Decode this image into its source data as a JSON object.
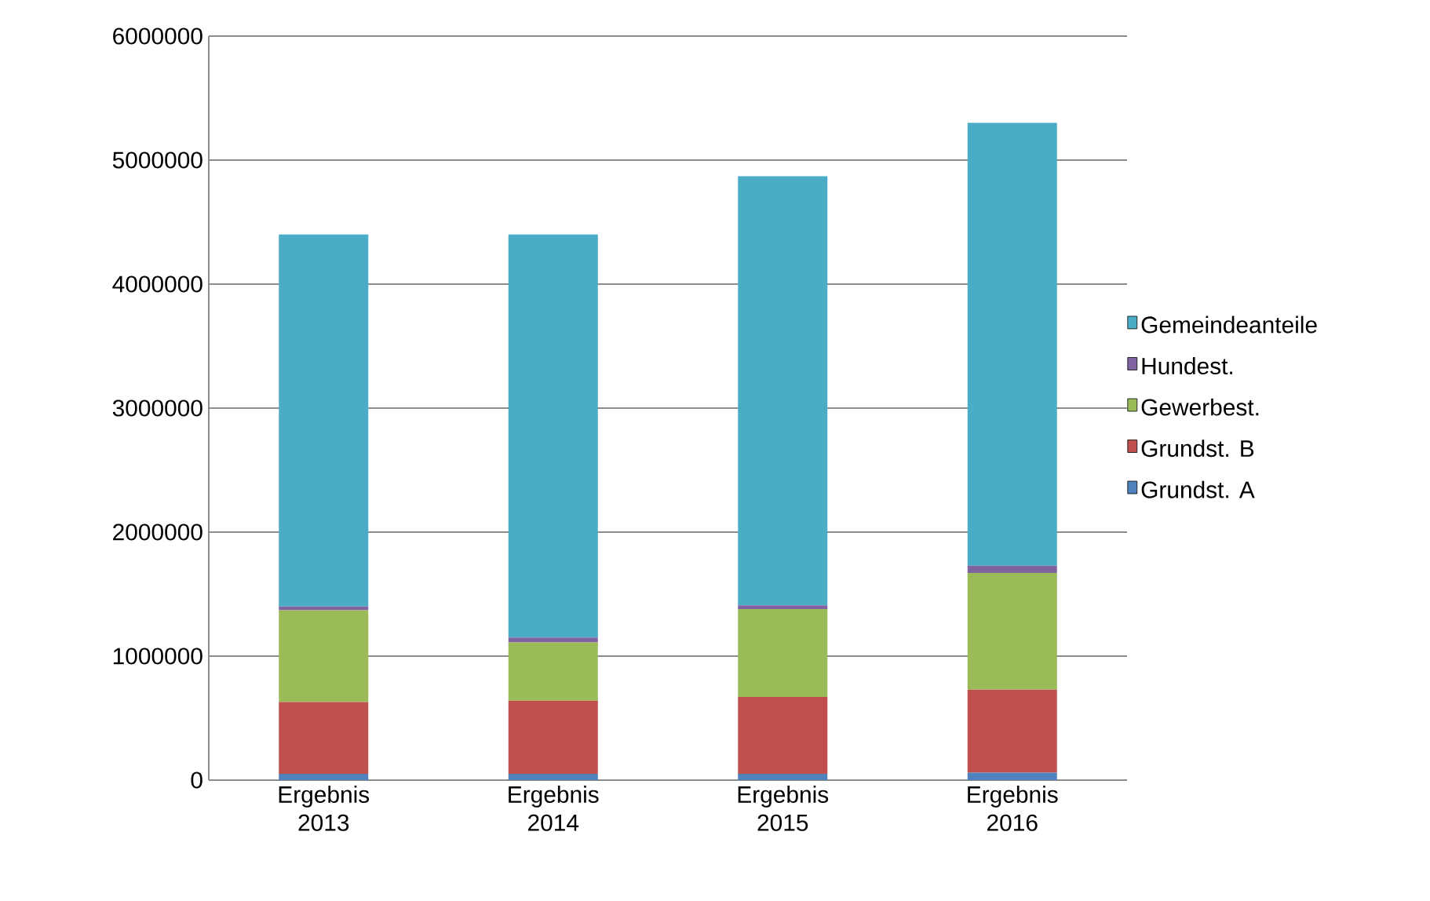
{
  "chart_data": {
    "type": "bar",
    "stacked": true,
    "categories": [
      "Ergebnis 2013",
      "Ergebnis 2014",
      "Ergebnis 2015",
      "Ergebnis 2016"
    ],
    "series": [
      {
        "name": "Grundst. A",
        "color": "#4f81bd",
        "values": [
          50000,
          50000,
          50000,
          60000
        ]
      },
      {
        "name": "Grundst. B",
        "color": "#c0504d",
        "values": [
          580000,
          590000,
          620000,
          670000
        ]
      },
      {
        "name": "Gewerbest.",
        "color": "#9bbb59",
        "values": [
          740000,
          470000,
          710000,
          940000
        ]
      },
      {
        "name": "Hundest.",
        "color": "#8064a2",
        "values": [
          30000,
          40000,
          30000,
          60000
        ]
      },
      {
        "name": "Gemeindeanteile",
        "color": "#4bacc6",
        "values": [
          3000000,
          3250000,
          3460000,
          3570000
        ]
      }
    ],
    "ylim": [
      0,
      6000000
    ],
    "yticks": [
      0,
      1000000,
      2000000,
      3000000,
      4000000,
      5000000,
      6000000
    ],
    "grid": "y",
    "legend": "right"
  }
}
